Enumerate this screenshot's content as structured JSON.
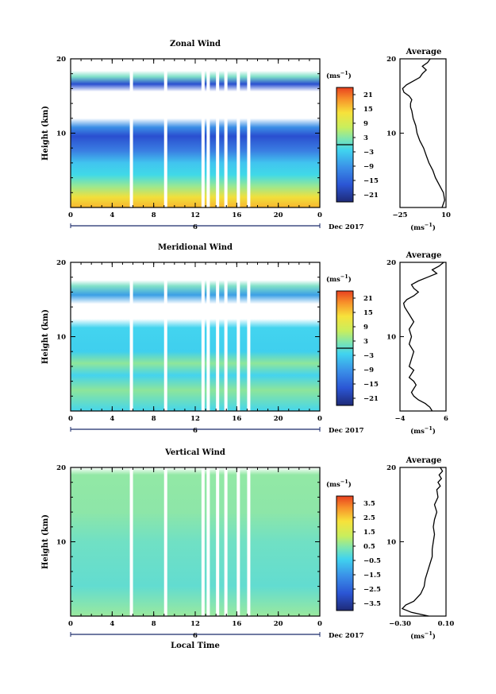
{
  "chart_data": [
    {
      "type": "heatmap",
      "title": "Zonal Wind",
      "ylabel": "Height (km)",
      "xticks": [
        "0",
        "4",
        "8",
        "12",
        "16",
        "20",
        "0"
      ],
      "day_label": "6",
      "date_label": "Dec 2017",
      "xlim": [
        0,
        24
      ],
      "ylim": [
        0,
        20
      ],
      "yticks": [
        "10",
        "20"
      ],
      "colorbar": {
        "unit": "(ms",
        "unit_sup": "−1",
        "unit_close": ")",
        "range": [
          -24,
          24
        ],
        "ticks": [
          "21",
          "15",
          "9",
          "3",
          "−3",
          "−9",
          "−15",
          "−21"
        ],
        "tick_values": [
          21,
          15,
          9,
          3,
          -3,
          -9,
          -15,
          -21
        ],
        "zero_line": 0
      },
      "data_gaps_local_time": [
        5.7,
        9.0,
        12.6,
        13.1,
        14.0,
        14.8,
        16.0,
        17.0
      ],
      "profile": {
        "title": "Average",
        "xticks": [
          "−25",
          "10"
        ],
        "xlim": [
          -25,
          10
        ],
        "yticks": [
          "10",
          "20"
        ],
        "xlabel": "(ms",
        "xlabel_sup": "−1",
        "xlabel_close": ")",
        "points": [
          [
            7,
            0
          ],
          [
            9,
            1
          ],
          [
            8,
            2
          ],
          [
            5,
            3
          ],
          [
            2,
            4
          ],
          [
            0,
            5
          ],
          [
            -3,
            6
          ],
          [
            -5,
            7
          ],
          [
            -7,
            8
          ],
          [
            -10,
            9
          ],
          [
            -12,
            10
          ],
          [
            -13,
            11
          ],
          [
            -15,
            12
          ],
          [
            -16,
            13
          ],
          [
            -17,
            13.5
          ],
          [
            -17,
            14
          ],
          [
            -16,
            14.5
          ],
          [
            -18,
            15
          ],
          [
            -22,
            15.5
          ],
          [
            -23,
            16
          ],
          [
            -20,
            16.5
          ],
          [
            -15,
            17
          ],
          [
            -10,
            17.5
          ],
          [
            -8,
            18
          ],
          [
            -5,
            18.5
          ],
          [
            -8,
            19
          ],
          [
            -4,
            19.5
          ],
          [
            -2,
            20
          ]
        ]
      }
    },
    {
      "type": "heatmap",
      "title": "Meridional Wind",
      "ylabel": "Height (km)",
      "xticks": [
        "0",
        "4",
        "8",
        "12",
        "16",
        "20",
        "0"
      ],
      "day_label": "6",
      "date_label": "Dec 2017",
      "xlim": [
        0,
        24
      ],
      "ylim": [
        0,
        20
      ],
      "yticks": [
        "10",
        "20"
      ],
      "colorbar": {
        "unit": "(ms",
        "unit_sup": "−1",
        "unit_close": ")",
        "range": [
          -24,
          24
        ],
        "ticks": [
          "21",
          "15",
          "9",
          "3",
          "−3",
          "−9",
          "−15",
          "−21"
        ],
        "tick_values": [
          21,
          15,
          9,
          3,
          -3,
          -9,
          -15,
          -21
        ],
        "zero_line": 0
      },
      "data_gaps_local_time": [
        5.7,
        9.0,
        12.6,
        13.1,
        14.0,
        14.8,
        16.0,
        17.0
      ],
      "profile": {
        "title": "Average",
        "xticks": [
          "−4",
          "6"
        ],
        "xlim": [
          -4,
          6
        ],
        "yticks": [
          "10",
          "20"
        ],
        "xlabel": "(ms",
        "xlabel_sup": "−1",
        "xlabel_close": ")",
        "points": [
          [
            3,
            0
          ],
          [
            2.5,
            0.5
          ],
          [
            1.5,
            1
          ],
          [
            0,
            1.5
          ],
          [
            -1,
            2
          ],
          [
            -1.5,
            2.5
          ],
          [
            -1,
            3
          ],
          [
            -0.5,
            3.5
          ],
          [
            -1,
            4
          ],
          [
            -2,
            4.5
          ],
          [
            -1.5,
            5
          ],
          [
            -1,
            5.5
          ],
          [
            -2,
            6
          ],
          [
            -1.5,
            7
          ],
          [
            -1,
            8
          ],
          [
            -2,
            9
          ],
          [
            -1.5,
            10
          ],
          [
            -2,
            11
          ],
          [
            -1,
            12
          ],
          [
            -1.5,
            12.5
          ],
          [
            -2,
            13
          ],
          [
            -2.5,
            13.5
          ],
          [
            -3,
            14
          ],
          [
            -3.2,
            14.5
          ],
          [
            -2.5,
            15
          ],
          [
            -1,
            15.5
          ],
          [
            0,
            16
          ],
          [
            -1,
            16.5
          ],
          [
            -1.5,
            17
          ],
          [
            0,
            17.5
          ],
          [
            2,
            18
          ],
          [
            4,
            18.5
          ],
          [
            3,
            19
          ],
          [
            4.5,
            19.5
          ],
          [
            5.5,
            20
          ]
        ]
      }
    },
    {
      "type": "heatmap",
      "title": "Vertical Wind",
      "ylabel": "Height (km)",
      "xlabel": "Local Time",
      "xticks": [
        "0",
        "4",
        "8",
        "12",
        "16",
        "20",
        "0"
      ],
      "day_label": "6",
      "date_label": "Dec 2017",
      "xlim": [
        0,
        24
      ],
      "ylim": [
        0,
        20
      ],
      "yticks": [
        "10",
        "20"
      ],
      "colorbar": {
        "unit": "(ms",
        "unit_sup": "−1",
        "unit_close": ")",
        "range": [
          -4,
          4
        ],
        "ticks": [
          "3.5",
          "2.5",
          "1.5",
          "0.5",
          "−0.5",
          "−1.5",
          "−2.5",
          "−3.5"
        ],
        "tick_values": [
          3.5,
          2.5,
          1.5,
          0.5,
          -0.5,
          -1.5,
          -2.5,
          -3.5
        ]
      },
      "data_gaps_local_time": [
        5.7,
        9.0,
        12.6,
        13.1,
        14.0,
        14.8,
        16.0,
        17.0
      ],
      "profile": {
        "title": "Average",
        "xticks": [
          "−0.30",
          "0.10"
        ],
        "xlim": [
          -0.3,
          0.1
        ],
        "yticks": [
          "10",
          "20"
        ],
        "xlabel": "(ms",
        "xlabel_sup": "−1",
        "xlabel_close": ")",
        "points": [
          [
            -0.05,
            0
          ],
          [
            -0.2,
            0.5
          ],
          [
            -0.28,
            1
          ],
          [
            -0.25,
            1.5
          ],
          [
            -0.18,
            2
          ],
          [
            -0.12,
            3
          ],
          [
            -0.09,
            4
          ],
          [
            -0.08,
            5
          ],
          [
            -0.06,
            6
          ],
          [
            -0.04,
            7
          ],
          [
            -0.02,
            8
          ],
          [
            -0.02,
            9
          ],
          [
            -0.01,
            10
          ],
          [
            0.0,
            11
          ],
          [
            -0.01,
            12
          ],
          [
            0.0,
            13
          ],
          [
            0.02,
            14
          ],
          [
            0.0,
            15
          ],
          [
            0.03,
            16
          ],
          [
            0.02,
            17
          ],
          [
            0.05,
            17.5
          ],
          [
            0.03,
            18
          ],
          [
            0.06,
            18.5
          ],
          [
            0.04,
            19
          ],
          [
            0.07,
            19.5
          ],
          [
            0.05,
            20
          ]
        ]
      }
    }
  ]
}
